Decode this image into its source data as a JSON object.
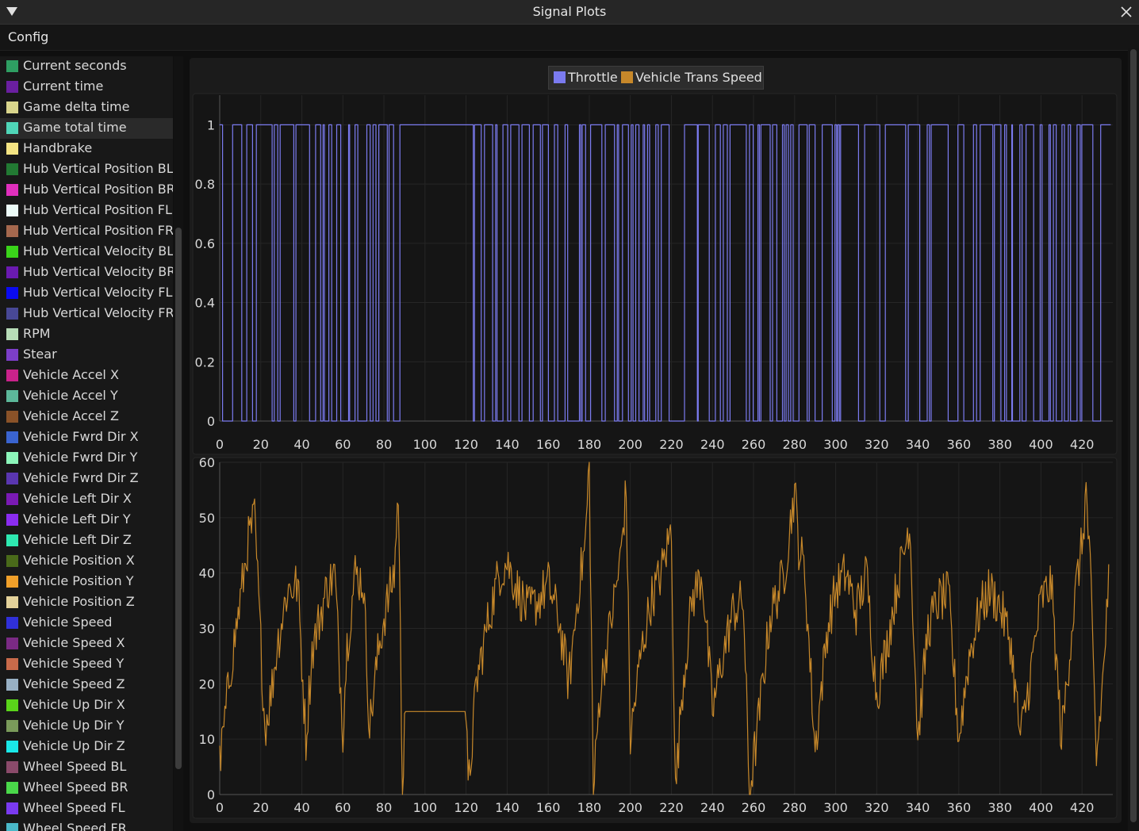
{
  "window": {
    "title": "Signal Plots"
  },
  "menu": {
    "config_label": "Config"
  },
  "signals": [
    {
      "label": "Current seconds",
      "color": "#2e9e62"
    },
    {
      "label": "Current time",
      "color": "#6a1fa0"
    },
    {
      "label": "Game delta time",
      "color": "#d9d58c"
    },
    {
      "label": "Game total time",
      "color": "#4fd6b8"
    },
    {
      "label": "Handbrake",
      "color": "#f4e483"
    },
    {
      "label": "Hub Vertical Position BL",
      "color": "#227a33"
    },
    {
      "label": "Hub Vertical Position BR",
      "color": "#e02fbd"
    },
    {
      "label": "Hub Vertical Position FL",
      "color": "#ecfbf7"
    },
    {
      "label": "Hub Vertical Position FR",
      "color": "#a5684e"
    },
    {
      "label": "Hub Vertical Velocity BL",
      "color": "#3ad41a"
    },
    {
      "label": "Hub Vertical Velocity BR",
      "color": "#6a1ab0"
    },
    {
      "label": "Hub Vertical Velocity FL",
      "color": "#0b0bf0"
    },
    {
      "label": "Hub Vertical Velocity FR",
      "color": "#484896"
    },
    {
      "label": "RPM",
      "color": "#b7dcb7"
    },
    {
      "label": "Stear",
      "color": "#7c3ec8"
    },
    {
      "label": "Vehicle Accel X",
      "color": "#c9228a"
    },
    {
      "label": "Vehicle Accel Y",
      "color": "#5cb89a"
    },
    {
      "label": "Vehicle Accel Z",
      "color": "#8a5228"
    },
    {
      "label": "Vehicle Fwrd Dir X",
      "color": "#3a64d0"
    },
    {
      "label": "Vehicle Fwrd Dir Y",
      "color": "#8cf6ba"
    },
    {
      "label": "Vehicle Fwrd Dir Z",
      "color": "#5a36b0"
    },
    {
      "label": "Vehicle Left Dir X",
      "color": "#7a1ab4"
    },
    {
      "label": "Vehicle Left Dir Y",
      "color": "#8a2cf0"
    },
    {
      "label": "Vehicle Left Dir Z",
      "color": "#2ee8b0"
    },
    {
      "label": "Vehicle Position X",
      "color": "#4a6a1a"
    },
    {
      "label": "Vehicle Position Y",
      "color": "#f0a02a"
    },
    {
      "label": "Vehicle Position Z",
      "color": "#e4d29a"
    },
    {
      "label": "Vehicle Speed",
      "color": "#3030d8"
    },
    {
      "label": "Vehicle Speed X",
      "color": "#7a2a84"
    },
    {
      "label": "Vehicle Speed Y",
      "color": "#c86a4a"
    },
    {
      "label": "Vehicle Speed Z",
      "color": "#98b0c4"
    },
    {
      "label": "Vehicle Up Dir X",
      "color": "#5ad41a"
    },
    {
      "label": "Vehicle Up Dir Y",
      "color": "#7a9a5a"
    },
    {
      "label": "Vehicle Up Dir Z",
      "color": "#1ae8e8"
    },
    {
      "label": "Wheel Speed BL",
      "color": "#8a4a6a"
    },
    {
      "label": "Wheel Speed BR",
      "color": "#4ad84a"
    },
    {
      "label": "Wheel Speed FL",
      "color": "#7a3af0"
    },
    {
      "label": "Wheel Speed FR",
      "color": "#4ab8c8"
    }
  ],
  "legend": [
    {
      "label": "Throttle",
      "color": "#7b7bf0"
    },
    {
      "label": "Vehicle Trans Speed",
      "color": "#c7882a"
    }
  ],
  "chart_data": [
    {
      "type": "line",
      "series": [
        {
          "name": "Throttle",
          "color": "#7b7bf0"
        }
      ],
      "xlim": [
        0,
        435
      ],
      "ylim": [
        0,
        1.1
      ],
      "x_ticks": [
        0,
        20,
        40,
        60,
        80,
        100,
        120,
        140,
        160,
        180,
        200,
        220,
        240,
        260,
        280,
        300,
        320,
        340,
        360,
        380,
        400,
        420
      ],
      "y_ticks": [
        0,
        0.2,
        0.4,
        0.6,
        0.8,
        1
      ],
      "y_tick_labels": [
        "0",
        "0.2",
        "0.4",
        "0.6",
        "0.8",
        "1"
      ],
      "full_throttle_intervals": [
        [
          0,
          88
        ],
        [
          89,
          122
        ],
        [
          181,
          182
        ],
        [
          253,
          255
        ],
        [
          294,
          297
        ],
        [
          324,
          328
        ]
      ],
      "dense_switching_intervals": [
        [
          0,
          88
        ],
        [
          122,
          180
        ],
        [
          183,
          335
        ],
        [
          335,
          435
        ]
      ],
      "grid": true
    },
    {
      "type": "line",
      "series": [
        {
          "name": "Vehicle Trans Speed",
          "color": "#c7882a"
        }
      ],
      "xlim": [
        0,
        435
      ],
      "ylim": [
        0,
        60
      ],
      "x_ticks": [
        0,
        20,
        40,
        60,
        80,
        100,
        120,
        140,
        160,
        180,
        200,
        220,
        240,
        260,
        280,
        300,
        320,
        340,
        360,
        380,
        400,
        420
      ],
      "y_ticks": [
        0,
        10,
        20,
        30,
        40,
        50,
        60
      ],
      "y_tick_labels": [
        "0",
        "10",
        "20",
        "30",
        "40",
        "50",
        "60"
      ],
      "envelope": {
        "x": [
          0,
          5,
          10,
          14,
          17,
          22,
          25,
          28,
          33,
          38,
          42,
          45,
          52,
          56,
          60,
          62,
          66,
          70,
          73,
          77,
          80,
          85,
          87,
          89,
          90,
          120,
          121,
          125,
          130,
          136,
          140,
          145,
          150,
          155,
          160,
          165,
          170,
          175,
          178,
          180,
          182,
          185,
          190,
          195,
          198,
          200,
          205,
          210,
          215,
          220,
          222,
          225,
          230,
          235,
          240,
          245,
          250,
          255,
          258,
          262,
          268,
          275,
          280,
          282,
          285,
          290,
          296,
          300,
          305,
          310,
          315,
          320,
          325,
          330,
          334,
          336,
          340,
          345,
          350,
          355,
          360,
          365,
          370,
          375,
          380,
          385,
          390,
          395,
          400,
          405,
          410,
          415,
          418,
          420,
          422,
          424,
          427,
          430,
          433
        ],
        "y": [
          5,
          22,
          35,
          46,
          50,
          12,
          18,
          27,
          37,
          38,
          10,
          26,
          37,
          40,
          12,
          27,
          40,
          38,
          12,
          25,
          32,
          40,
          55,
          0,
          15,
          15,
          0,
          20,
          30,
          40,
          42,
          37,
          33,
          35,
          38,
          32,
          20,
          38,
          45,
          60,
          0,
          18,
          30,
          42,
          55,
          10,
          25,
          35,
          40,
          48,
          0,
          18,
          35,
          40,
          15,
          25,
          33,
          35,
          0,
          12,
          32,
          40,
          55,
          45,
          40,
          8,
          30,
          37,
          40,
          33,
          40,
          18,
          27,
          38,
          45,
          50,
          10,
          30,
          35,
          36,
          10,
          25,
          33,
          37,
          34,
          28,
          10,
          22,
          35,
          38,
          10,
          30,
          40,
          45,
          55,
          40,
          6,
          20,
          38
        ]
      },
      "grid": true
    }
  ]
}
